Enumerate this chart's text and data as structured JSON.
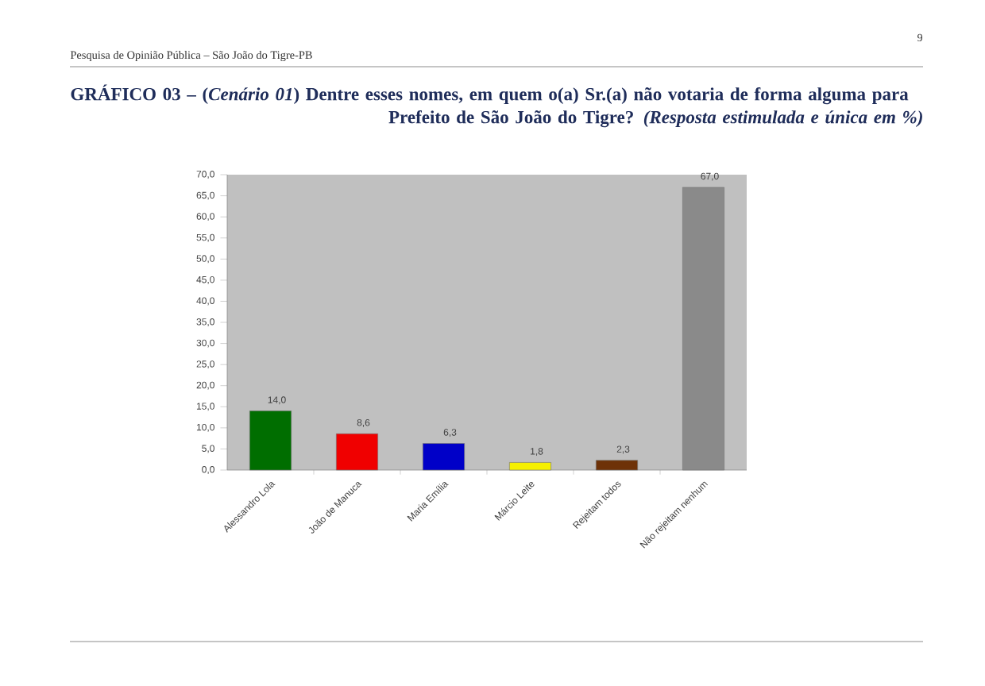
{
  "chart_data": {
    "type": "bar",
    "title": "GRÁFICO 03 – (*Cenário 01*) Dentre esses nomes, em quem o(a) Sr.(a) não votaria de forma alguma para Prefeito de São João do Tigre? *(Resposta estimulada e única em %)*",
    "categories": [
      "Alessandro Lola",
      "João de Manuca",
      "Maria Emília",
      "Márcio Leite",
      "Rejeitam todos",
      "Não rejeitam nenhum"
    ],
    "values": [
      14.0,
      8.6,
      6.3,
      1.8,
      2.3,
      67.0
    ],
    "colors": [
      "#006e00",
      "#f00000",
      "#0000c8",
      "#f5f000",
      "#6e3208",
      "#8a8a8a"
    ],
    "value_labels": [
      "14,0",
      "8,6",
      "6,3",
      "1,8",
      "2,3",
      "67,0"
    ],
    "ylim": [
      0,
      70
    ],
    "yticks": [
      {
        "value": 0,
        "label": "0,0"
      },
      {
        "value": 5,
        "label": "5,0"
      },
      {
        "value": 10,
        "label": "10,0"
      },
      {
        "value": 15,
        "label": "15,0"
      },
      {
        "value": 20,
        "label": "20,0"
      },
      {
        "value": 25,
        "label": "25,0"
      },
      {
        "value": 30,
        "label": "30,0"
      },
      {
        "value": 35,
        "label": "35,0"
      },
      {
        "value": 40,
        "label": "40,0"
      },
      {
        "value": 45,
        "label": "45,0"
      },
      {
        "value": 50,
        "label": "50,0"
      },
      {
        "value": 55,
        "label": "55,0"
      },
      {
        "value": 60,
        "label": "60,0"
      },
      {
        "value": 65,
        "label": "65,0"
      },
      {
        "value": 70,
        "label": "70,0"
      }
    ],
    "annotations": [
      "Pesquisa de Opinião Pública – São João do Tigre-PB",
      "9"
    ]
  }
}
